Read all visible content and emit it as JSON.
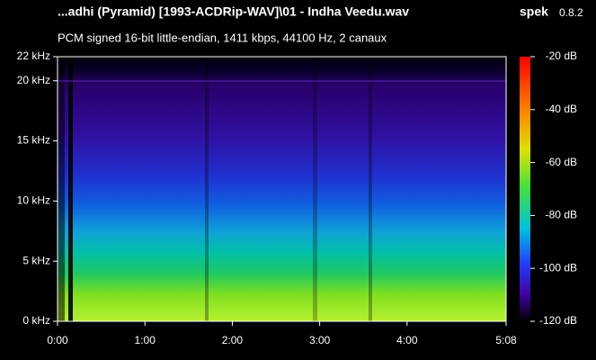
{
  "chart_data": {
    "type": "spectrogram",
    "title": "...adhi (Pyramid) [1993-ACDRip-WAV]\\01 - Indha Veedu.wav",
    "app_name": "spek",
    "app_version": "0.8.2",
    "subtitle": "PCM signed 16-bit little-endian, 1411 kbps, 44100 Hz, 2 canaux",
    "xlim": [
      0,
      308
    ],
    "xticks": [
      {
        "value": 0,
        "label": "0:00"
      },
      {
        "value": 60,
        "label": "1:00"
      },
      {
        "value": 120,
        "label": "2:00"
      },
      {
        "value": 180,
        "label": "3:00"
      },
      {
        "value": 240,
        "label": "4:00"
      },
      {
        "value": 308,
        "label": "5:08"
      }
    ],
    "ylim": [
      0,
      22
    ],
    "yticks": [
      {
        "value": 0,
        "label": "0 kHz"
      },
      {
        "value": 5,
        "label": "5 kHz"
      },
      {
        "value": 10,
        "label": "10 kHz"
      },
      {
        "value": 15,
        "label": "15 kHz"
      },
      {
        "value": 20,
        "label": "20 kHz"
      },
      {
        "value": 22,
        "label": "22 kHz"
      }
    ],
    "colorbar": {
      "lim": [
        -120,
        -20
      ],
      "ticks": [
        {
          "value": -20,
          "label": "-20 dB"
        },
        {
          "value": -40,
          "label": "-40 dB"
        },
        {
          "value": -60,
          "label": "-60 dB"
        },
        {
          "value": -80,
          "label": "-80 dB"
        },
        {
          "value": -100,
          "label": "-100 dB"
        },
        {
          "value": -120,
          "label": "-120 dB"
        }
      ]
    }
  }
}
